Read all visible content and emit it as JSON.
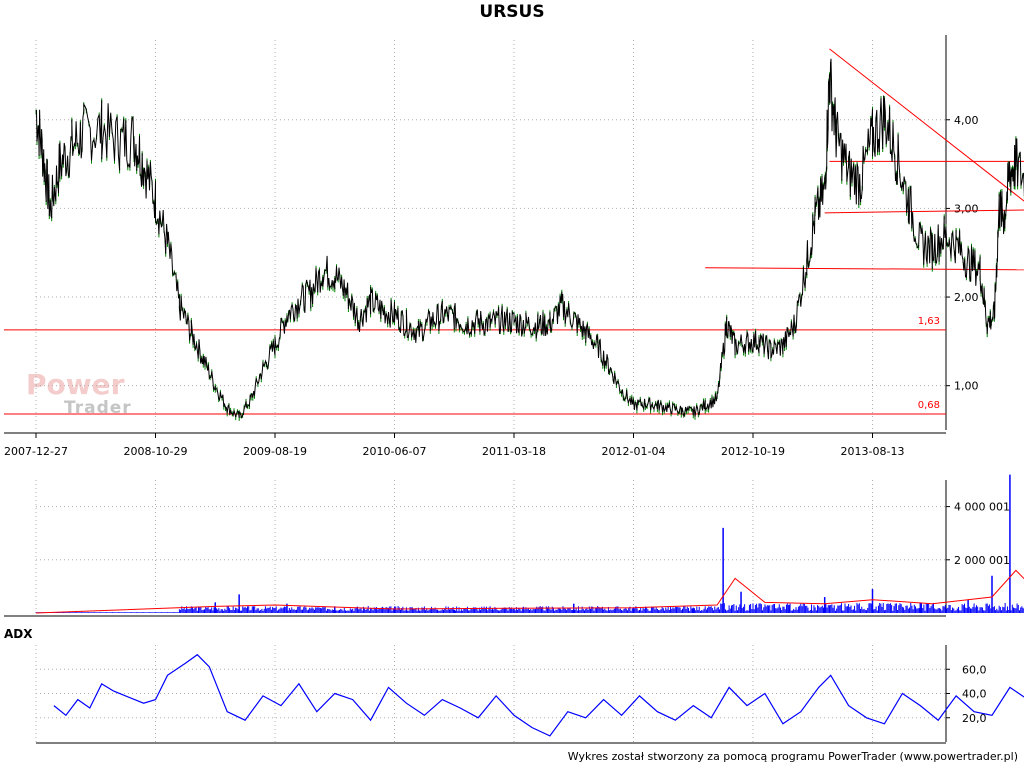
{
  "title": "URSUS",
  "footer": "Wykres został stworzony za pomocą programu PowerTrader (www.powertrader.pl)",
  "watermark": {
    "line1": "Power",
    "line2": "Trader"
  },
  "colors": {
    "price": "#000000",
    "price_up": "#008000",
    "volume": "#0000ff",
    "volume_avg": "#ff0000",
    "adx": "#0000ff",
    "trend": "#ff0000",
    "grid": "#b0b0b0"
  },
  "chart_data": [
    {
      "type": "line",
      "name": "price",
      "x_ticks": [
        "2007-12-27",
        "2008-10-29",
        "2009-08-19",
        "2010-06-07",
        "2011-03-18",
        "2012-01-04",
        "2012-10-19",
        "2013-08-13"
      ],
      "y_ticks": [
        "1,00",
        "2,00",
        "3,00",
        "4,00"
      ],
      "ylim": [
        0.5,
        4.9
      ],
      "points": [
        [
          0,
          4.1
        ],
        [
          0.06,
          3.6
        ],
        [
          0.12,
          3.0
        ],
        [
          0.2,
          3.5
        ],
        [
          0.3,
          3.7
        ],
        [
          0.4,
          3.85
        ],
        [
          0.55,
          3.9
        ],
        [
          0.7,
          3.75
        ],
        [
          0.82,
          3.8
        ],
        [
          0.9,
          3.5
        ],
        [
          1.0,
          3.1
        ],
        [
          1.1,
          2.6
        ],
        [
          1.2,
          1.9
        ],
        [
          1.3,
          1.6
        ],
        [
          1.4,
          1.3
        ],
        [
          1.5,
          1.0
        ],
        [
          1.6,
          0.75
        ],
        [
          1.7,
          0.65
        ],
        [
          1.8,
          0.85
        ],
        [
          1.9,
          1.2
        ],
        [
          2.0,
          1.45
        ],
        [
          2.1,
          1.8
        ],
        [
          2.2,
          1.95
        ],
        [
          2.3,
          2.05
        ],
        [
          2.4,
          2.3
        ],
        [
          2.5,
          2.25
        ],
        [
          2.6,
          2.05
        ],
        [
          2.7,
          1.75
        ],
        [
          2.8,
          1.95
        ],
        [
          2.9,
          1.85
        ],
        [
          3.0,
          1.8
        ],
        [
          3.1,
          1.7
        ],
        [
          3.2,
          1.6
        ],
        [
          3.3,
          1.72
        ],
        [
          3.4,
          1.8
        ],
        [
          3.5,
          1.78
        ],
        [
          3.6,
          1.7
        ],
        [
          3.7,
          1.72
        ],
        [
          3.8,
          1.7
        ],
        [
          3.9,
          1.75
        ],
        [
          4.0,
          1.72
        ],
        [
          4.1,
          1.7
        ],
        [
          4.2,
          1.68
        ],
        [
          4.3,
          1.7
        ],
        [
          4.4,
          1.9
        ],
        [
          4.5,
          1.75
        ],
        [
          4.6,
          1.6
        ],
        [
          4.7,
          1.45
        ],
        [
          4.8,
          1.2
        ],
        [
          4.9,
          0.95
        ],
        [
          5.0,
          0.78
        ],
        [
          5.1,
          0.8
        ],
        [
          5.2,
          0.78
        ],
        [
          5.3,
          0.75
        ],
        [
          5.4,
          0.72
        ],
        [
          5.5,
          0.7
        ],
        [
          5.6,
          0.78
        ],
        [
          5.7,
          0.85
        ],
        [
          5.78,
          1.7
        ],
        [
          5.85,
          1.45
        ],
        [
          5.95,
          1.5
        ],
        [
          6.05,
          1.5
        ],
        [
          6.15,
          1.4
        ],
        [
          6.25,
          1.45
        ],
        [
          6.35,
          1.7
        ],
        [
          6.45,
          2.4
        ],
        [
          6.52,
          2.9
        ],
        [
          6.6,
          3.2
        ],
        [
          6.64,
          4.5
        ],
        [
          6.7,
          3.8
        ],
        [
          6.8,
          3.4
        ],
        [
          6.9,
          3.3
        ],
        [
          7.0,
          3.8
        ],
        [
          7.1,
          4.05
        ],
        [
          7.2,
          3.6
        ],
        [
          7.3,
          3.1
        ],
        [
          7.4,
          2.6
        ],
        [
          7.5,
          2.55
        ],
        [
          7.6,
          2.7
        ],
        [
          7.7,
          2.6
        ],
        [
          7.8,
          2.4
        ],
        [
          7.9,
          2.3
        ],
        [
          7.96,
          1.7
        ],
        [
          8.02,
          1.8
        ],
        [
          8.06,
          3.0
        ],
        [
          8.1,
          2.9
        ],
        [
          8.15,
          3.4
        ],
        [
          8.2,
          3.5
        ],
        [
          8.3,
          3.25
        ],
        [
          8.4,
          2.9
        ],
        [
          8.5,
          2.55
        ],
        [
          8.6,
          2.35
        ],
        [
          8.7,
          2.55
        ],
        [
          8.8,
          2.7
        ],
        [
          8.9,
          2.55
        ]
      ],
      "horizontal_lines": [
        {
          "value": 1.63,
          "label": "1,63"
        },
        {
          "value": 0.68,
          "label": "0,68"
        }
      ],
      "trend_lines": [
        {
          "from": [
            6.64,
            4.8
          ],
          "to": [
            9.2,
            2.1
          ]
        },
        {
          "from": [
            5.6,
            2.33
          ],
          "to": [
            9.2,
            2.3
          ]
        },
        {
          "from": [
            6.6,
            2.95
          ],
          "to": [
            9.2,
            3.0
          ]
        },
        {
          "from": [
            6.64,
            3.53
          ],
          "to": [
            9.2,
            3.53
          ]
        }
      ]
    },
    {
      "type": "bar",
      "name": "volume",
      "y_ticks": [
        "2 000 001",
        "4 000 001"
      ],
      "ylim": [
        0,
        5000000
      ],
      "series": [
        {
          "name": "volume",
          "values": [
            [
              1.5,
              400000
            ],
            [
              1.7,
              700000
            ],
            [
              2.1,
              350000
            ],
            [
              2.5,
              250000
            ],
            [
              3.0,
              150000
            ],
            [
              3.5,
              120000
            ],
            [
              4.0,
              150000
            ],
            [
              4.5,
              350000
            ],
            [
              5.0,
              200000
            ],
            [
              5.5,
              180000
            ],
            [
              5.75,
              3200000
            ],
            [
              5.9,
              800000
            ],
            [
              6.3,
              300000
            ],
            [
              6.6,
              600000
            ],
            [
              7.0,
              900000
            ],
            [
              7.4,
              400000
            ],
            [
              7.8,
              500000
            ],
            [
              8.0,
              1400000
            ],
            [
              8.15,
              5200000
            ],
            [
              8.3,
              1500000
            ],
            [
              8.7,
              500000
            ],
            [
              9.0,
              300000
            ]
          ]
        },
        {
          "name": "volume-avg",
          "values": [
            [
              0,
              0
            ],
            [
              1.5,
              250000
            ],
            [
              2.0,
              300000
            ],
            [
              3.0,
              150000
            ],
            [
              4.0,
              180000
            ],
            [
              5.0,
              200000
            ],
            [
              5.7,
              300000
            ],
            [
              5.85,
              1300000
            ],
            [
              6.1,
              400000
            ],
            [
              6.6,
              350000
            ],
            [
              7.0,
              500000
            ],
            [
              7.5,
              350000
            ],
            [
              8.0,
              600000
            ],
            [
              8.2,
              1600000
            ],
            [
              8.4,
              700000
            ],
            [
              9.2,
              300000
            ]
          ]
        }
      ]
    },
    {
      "type": "line",
      "name": "ADX",
      "label": "ADX",
      "y_ticks": [
        "20,0",
        "40,0",
        "60,0"
      ],
      "ylim": [
        0,
        80
      ],
      "points": [
        [
          0.15,
          30
        ],
        [
          0.25,
          22
        ],
        [
          0.35,
          35
        ],
        [
          0.45,
          28
        ],
        [
          0.55,
          48
        ],
        [
          0.65,
          42
        ],
        [
          0.75,
          38
        ],
        [
          0.9,
          32
        ],
        [
          1.0,
          35
        ],
        [
          1.1,
          55
        ],
        [
          1.25,
          65
        ],
        [
          1.35,
          72
        ],
        [
          1.45,
          62
        ],
        [
          1.6,
          25
        ],
        [
          1.75,
          18
        ],
        [
          1.9,
          38
        ],
        [
          2.05,
          30
        ],
        [
          2.2,
          48
        ],
        [
          2.35,
          25
        ],
        [
          2.5,
          40
        ],
        [
          2.65,
          35
        ],
        [
          2.8,
          18
        ],
        [
          2.95,
          45
        ],
        [
          3.1,
          32
        ],
        [
          3.25,
          22
        ],
        [
          3.4,
          35
        ],
        [
          3.55,
          28
        ],
        [
          3.7,
          20
        ],
        [
          3.85,
          38
        ],
        [
          4.0,
          22
        ],
        [
          4.15,
          12
        ],
        [
          4.3,
          5
        ],
        [
          4.45,
          25
        ],
        [
          4.6,
          20
        ],
        [
          4.75,
          35
        ],
        [
          4.9,
          22
        ],
        [
          5.05,
          38
        ],
        [
          5.2,
          25
        ],
        [
          5.35,
          18
        ],
        [
          5.5,
          30
        ],
        [
          5.65,
          20
        ],
        [
          5.8,
          45
        ],
        [
          5.95,
          30
        ],
        [
          6.1,
          40
        ],
        [
          6.25,
          15
        ],
        [
          6.4,
          25
        ],
        [
          6.55,
          45
        ],
        [
          6.65,
          55
        ],
        [
          6.8,
          30
        ],
        [
          6.95,
          20
        ],
        [
          7.1,
          15
        ],
        [
          7.25,
          40
        ],
        [
          7.4,
          30
        ],
        [
          7.55,
          18
        ],
        [
          7.7,
          38
        ],
        [
          7.85,
          25
        ],
        [
          8.0,
          22
        ],
        [
          8.15,
          45
        ],
        [
          8.3,
          35
        ],
        [
          8.5,
          20
        ],
        [
          8.65,
          35
        ],
        [
          8.8,
          18
        ],
        [
          8.9,
          15
        ]
      ]
    }
  ]
}
